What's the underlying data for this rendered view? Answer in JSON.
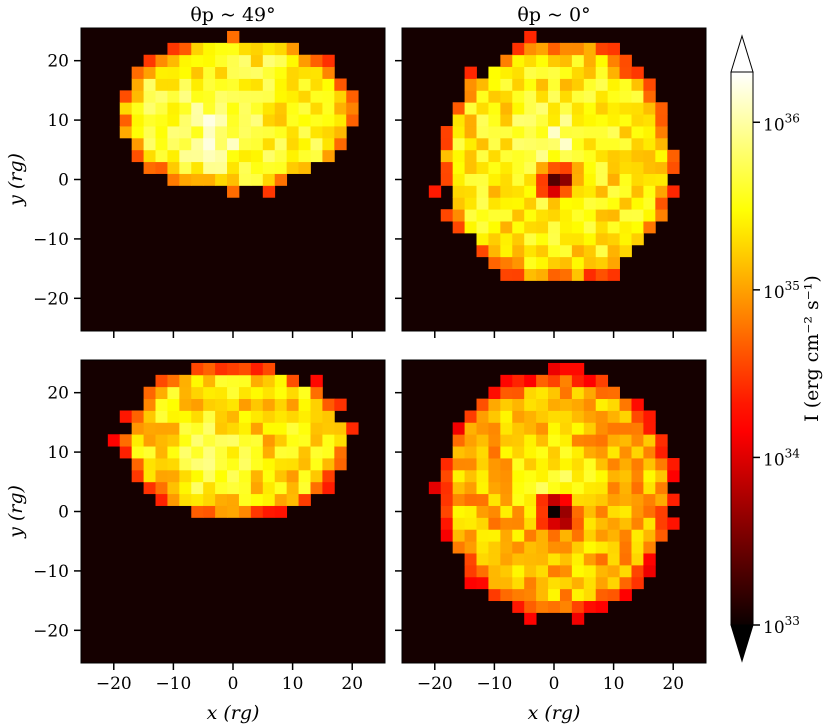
{
  "chart_data": {
    "type": "heatmap",
    "panels": [
      {
        "row": 0,
        "col": 0,
        "shape": "ellipse",
        "cx": 0.5,
        "cy": 11,
        "rx": 20,
        "ry": 13,
        "hole_radius": 0,
        "peak_x": -3,
        "peak_y": 8,
        "base_log": 35.5,
        "title": "θp ~ 49°"
      },
      {
        "row": 0,
        "col": 1,
        "shape": "disk",
        "cx": 0.5,
        "cy": 3,
        "rx": 20,
        "ry": 21,
        "hole_radius": 2.5,
        "peak_x": 0,
        "peak_y": 6,
        "base_log": 35.4,
        "title": "θp ~ 0°"
      },
      {
        "row": 1,
        "col": 0,
        "shape": "ellipse",
        "cx": 0.5,
        "cy": 12,
        "rx": 19.5,
        "ry": 13,
        "hole_radius": 0,
        "peak_x": -3,
        "peak_y": 9,
        "base_log": 35.3,
        "title": ""
      },
      {
        "row": 1,
        "col": 1,
        "shape": "disk",
        "cx": 0.5,
        "cy": 3,
        "rx": 20,
        "ry": 21,
        "hole_radius": 2.5,
        "peak_x": 0,
        "peak_y": 6,
        "base_log": 35.1,
        "title": ""
      }
    ],
    "x_range": [
      -25.5,
      25.5
    ],
    "y_range": [
      -25.5,
      25.5
    ],
    "x_ticks": [
      -20,
      -10,
      0,
      10,
      20
    ],
    "x_tick_labels": [
      "−20",
      "−10",
      "0",
      "10",
      "20"
    ],
    "y_ticks": [
      20,
      10,
      0,
      -10,
      -20
    ],
    "y_tick_labels": [
      "20",
      "10",
      "0",
      "−10",
      "−20"
    ],
    "xlabel": "x (rg)",
    "ylabel": "y (rg)",
    "colorbar": {
      "label": "I (erg cm⁻² s⁻¹)",
      "scale": "log",
      "range_log": [
        33,
        36.3
      ],
      "ticks": [
        33,
        34,
        35,
        36
      ],
      "tick_labels": [
        "10^33",
        "10^34",
        "10^35",
        "10^36"
      ],
      "colormap": "hot"
    },
    "grid": false,
    "legend": "none"
  }
}
